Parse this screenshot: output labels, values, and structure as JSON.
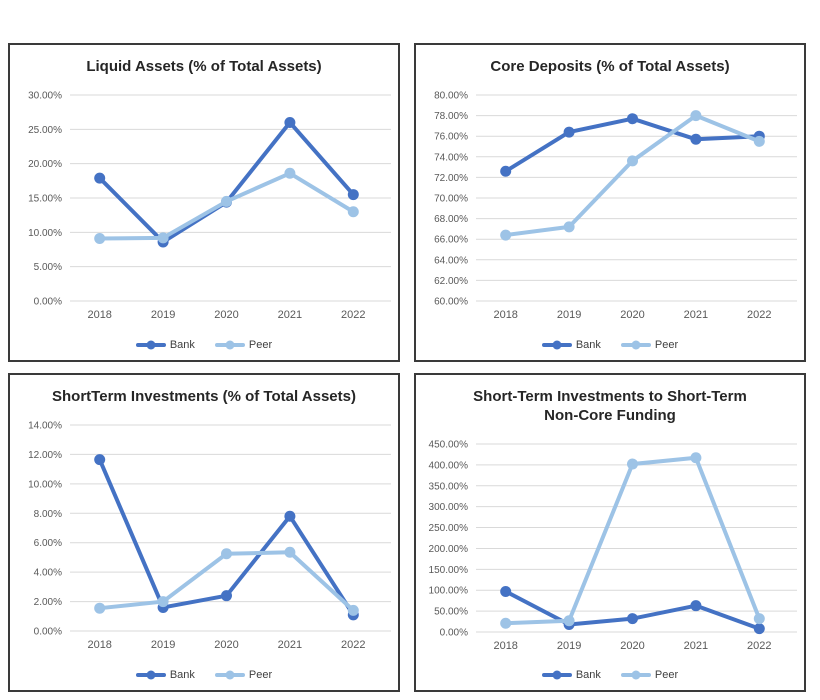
{
  "colors": {
    "bank": "#4472C4",
    "peer": "#9DC3E6",
    "gridline": "#D9D9D9",
    "tick_text": "#595959",
    "title_text": "#262626",
    "panel_border": "#3A3A3A",
    "legend_text": "#404040",
    "background": "#FFFFFF"
  },
  "chart_data": [
    {
      "type": "line",
      "title": "Liquid Assets (% of Total Assets)",
      "xlabel": "",
      "ylabel": "",
      "categories": [
        "2018",
        "2019",
        "2020",
        "2021",
        "2022"
      ],
      "series": [
        {
          "name": "Bank",
          "color": "#4472C4",
          "values": [
            17.9,
            8.6,
            14.4,
            26.0,
            15.5
          ]
        },
        {
          "name": "Peer",
          "color": "#9DC3E6",
          "values": [
            9.1,
            9.2,
            14.5,
            18.6,
            13.0
          ]
        }
      ],
      "ylim": [
        0,
        30
      ],
      "ytick_step": 5,
      "ytick_format": "percent-2dp",
      "grid": true,
      "legend_position": "bottom"
    },
    {
      "type": "line",
      "title": "Core Deposits (% of Total Assets)",
      "xlabel": "",
      "ylabel": "",
      "categories": [
        "2018",
        "2019",
        "2020",
        "2021",
        "2022"
      ],
      "series": [
        {
          "name": "Bank",
          "color": "#4472C4",
          "values": [
            72.6,
            76.4,
            77.7,
            75.7,
            76.0
          ]
        },
        {
          "name": "Peer",
          "color": "#9DC3E6",
          "values": [
            66.4,
            67.2,
            73.6,
            78.0,
            75.5
          ]
        }
      ],
      "ylim": [
        60,
        80
      ],
      "ytick_step": 2,
      "ytick_format": "percent-2dp",
      "grid": true,
      "legend_position": "bottom"
    },
    {
      "type": "line",
      "title": "ShortTerm Investments (% of Total Assets)",
      "xlabel": "",
      "ylabel": "",
      "categories": [
        "2018",
        "2019",
        "2020",
        "2021",
        "2022"
      ],
      "series": [
        {
          "name": "Bank",
          "color": "#4472C4",
          "values": [
            11.65,
            1.6,
            2.4,
            7.8,
            1.1
          ]
        },
        {
          "name": "Peer",
          "color": "#9DC3E6",
          "values": [
            1.55,
            2.0,
            5.25,
            5.35,
            1.4
          ]
        }
      ],
      "ylim": [
        0,
        14
      ],
      "ytick_step": 2,
      "ytick_format": "percent-2dp",
      "grid": true,
      "legend_position": "bottom"
    },
    {
      "type": "line",
      "title": "Short-Term Investments to Short-Term\nNon-Core Funding",
      "xlabel": "",
      "ylabel": "",
      "categories": [
        "2018",
        "2019",
        "2020",
        "2021",
        "2022"
      ],
      "series": [
        {
          "name": "Bank",
          "color": "#4472C4",
          "values": [
            97,
            18,
            32,
            63,
            8
          ]
        },
        {
          "name": "Peer",
          "color": "#9DC3E6",
          "values": [
            21,
            27,
            402,
            417,
            32
          ]
        }
      ],
      "ylim": [
        0,
        450
      ],
      "ytick_step": 50,
      "ytick_format": "percent-2dp",
      "grid": true,
      "legend_position": "bottom"
    }
  ]
}
